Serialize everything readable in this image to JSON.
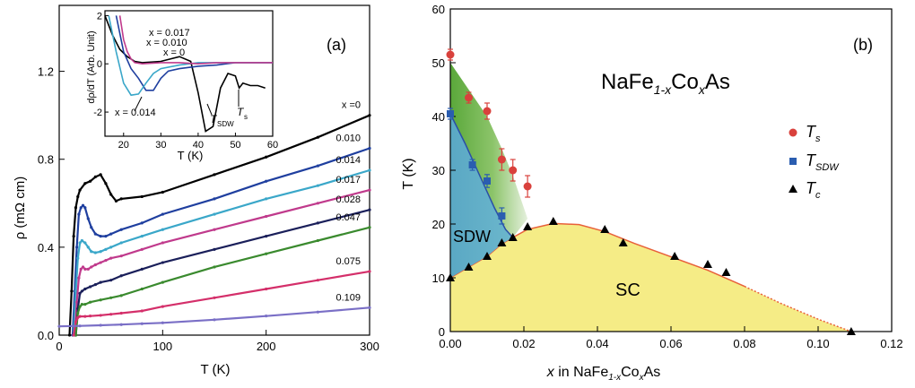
{
  "chart_data": [
    {
      "panel_label": "(a)",
      "type": "line",
      "xlabel": "T (K)",
      "ylabel": "ρ (mΩ cm)",
      "xlim": [
        0,
        300
      ],
      "ylim": [
        0,
        1.5
      ],
      "xticks": [
        "0",
        "100",
        "200",
        "300"
      ],
      "yticks": [
        "0.0",
        "0.4",
        "0.8",
        "1.2"
      ],
      "series": [
        {
          "name": "x =0",
          "color": "#000000",
          "x": [
            10,
            12,
            14,
            16,
            18,
            20,
            25,
            30,
            35,
            40,
            45,
            50,
            55,
            60,
            80,
            100,
            150,
            200,
            250,
            300
          ],
          "y": [
            0,
            0.2,
            0.45,
            0.58,
            0.63,
            0.66,
            0.69,
            0.7,
            0.72,
            0.73,
            0.69,
            0.64,
            0.61,
            0.62,
            0.63,
            0.65,
            0.73,
            0.81,
            0.9,
            1.0
          ]
        },
        {
          "name": "0.010",
          "color": "#1f3f9f",
          "x": [
            13,
            15,
            17,
            19,
            21,
            23,
            25,
            28,
            31,
            35,
            40,
            45,
            50,
            60,
            80,
            100,
            150,
            200,
            250,
            300
          ],
          "y": [
            0,
            0.2,
            0.4,
            0.55,
            0.58,
            0.59,
            0.58,
            0.53,
            0.49,
            0.46,
            0.45,
            0.45,
            0.46,
            0.48,
            0.51,
            0.55,
            0.62,
            0.7,
            0.77,
            0.85
          ]
        },
        {
          "name": "0.014",
          "color": "#3aa7c9",
          "x": [
            14,
            16,
            18,
            20,
            22,
            25,
            28,
            31,
            35,
            40,
            45,
            50,
            60,
            80,
            100,
            150,
            200,
            250,
            300
          ],
          "y": [
            0,
            0.2,
            0.35,
            0.42,
            0.43,
            0.42,
            0.4,
            0.38,
            0.375,
            0.38,
            0.39,
            0.4,
            0.42,
            0.45,
            0.48,
            0.55,
            0.62,
            0.68,
            0.75
          ]
        },
        {
          "name": "0.017",
          "color": "#c03a8c",
          "x": [
            15,
            17,
            19,
            21,
            23,
            25,
            28,
            31,
            35,
            40,
            45,
            50,
            60,
            80,
            100,
            150,
            200,
            250,
            300
          ],
          "y": [
            0,
            0.15,
            0.26,
            0.3,
            0.31,
            0.3,
            0.3,
            0.31,
            0.32,
            0.33,
            0.34,
            0.35,
            0.36,
            0.39,
            0.42,
            0.48,
            0.54,
            0.6,
            0.66
          ]
        },
        {
          "name": "0.028",
          "color": "#1a1f5a",
          "x": [
            16,
            18,
            20,
            22,
            25,
            30,
            35,
            40,
            50,
            60,
            80,
            100,
            150,
            200,
            250,
            300
          ],
          "y": [
            0,
            0.12,
            0.19,
            0.2,
            0.21,
            0.22,
            0.23,
            0.24,
            0.25,
            0.27,
            0.3,
            0.33,
            0.39,
            0.45,
            0.51,
            0.57
          ]
        },
        {
          "name": "0.047",
          "color": "#3a8a2e",
          "x": [
            16,
            18,
            20,
            22,
            25,
            30,
            40,
            50,
            60,
            80,
            100,
            150,
            200,
            250,
            300
          ],
          "y": [
            0,
            0.1,
            0.13,
            0.14,
            0.14,
            0.15,
            0.16,
            0.17,
            0.18,
            0.21,
            0.24,
            0.31,
            0.37,
            0.43,
            0.49
          ]
        },
        {
          "name": "0.075",
          "color": "#d42f6a",
          "x": [
            14,
            16,
            18,
            20,
            25,
            30,
            40,
            50,
            60,
            80,
            100,
            150,
            200,
            250,
            300
          ],
          "y": [
            0,
            0.06,
            0.08,
            0.085,
            0.085,
            0.087,
            0.09,
            0.095,
            0.1,
            0.11,
            0.13,
            0.17,
            0.21,
            0.25,
            0.29
          ]
        },
        {
          "name": "0.109",
          "color": "#7a6fc6",
          "x": [
            0,
            20,
            40,
            60,
            80,
            100,
            150,
            200,
            250,
            300
          ],
          "y": [
            0.04,
            0.042,
            0.045,
            0.048,
            0.052,
            0.056,
            0.07,
            0.087,
            0.105,
            0.125
          ]
        }
      ],
      "inset": {
        "ylabel": "dρ/dT (Arb. Unit)",
        "xlabel": "T (K)",
        "xlim": [
          15,
          60
        ],
        "ylim": [
          -3,
          2.2
        ],
        "xticks": [
          "20",
          "30",
          "40",
          "50",
          "60"
        ],
        "yticks": [
          "-2",
          "0",
          "2"
        ],
        "legend_labels": [
          "x = 0.017",
          "x = 0.010",
          "x = 0",
          "x = 0.014"
        ],
        "annotations": [
          "T",
          "SDW",
          "T",
          "s"
        ],
        "series": [
          {
            "color": "#000000",
            "x": [
              15,
              17,
              19,
              21,
              23,
              25,
              30,
              35,
              38,
              40,
              42,
              44,
              46,
              48,
              50,
              51,
              52,
              54,
              56,
              58
            ],
            "y": [
              2,
              1.2,
              0.6,
              0.3,
              0.1,
              0.05,
              0.1,
              0.3,
              0.1,
              -1.2,
              -2.8,
              -2.6,
              -1.0,
              -0.4,
              -0.5,
              -1.0,
              -0.8,
              -0.9,
              -0.9,
              -1.0
            ]
          },
          {
            "color": "#1f3f9f",
            "x": [
              18,
              20,
              22,
              24,
              26,
              28,
              30,
              32,
              35,
              40,
              45,
              50,
              55,
              60
            ],
            "y": [
              2,
              0.5,
              -0.2,
              -0.6,
              -1.1,
              -1.1,
              -0.6,
              -0.3,
              -0.2,
              -0.1,
              -0.05,
              0.05,
              0.05,
              0.05
            ]
          },
          {
            "color": "#3aa7c9",
            "x": [
              16,
              18,
              20,
              22,
              24,
              26,
              28,
              30,
              35,
              40,
              50,
              60
            ],
            "y": [
              2,
              0.5,
              -0.8,
              -1.3,
              -1.25,
              -0.8,
              -0.4,
              -0.2,
              -0.05,
              0.05,
              0.05,
              0.05
            ]
          },
          {
            "color": "#c03a8c",
            "x": [
              19,
              20,
              21,
              22,
              23,
              25,
              30,
              35,
              40,
              45,
              50,
              55,
              60
            ],
            "y": [
              2,
              1.0,
              0.5,
              0.2,
              0.05,
              0.0,
              0.05,
              0.05,
              0.0,
              0.05,
              0.05,
              0.05,
              0.05
            ]
          }
        ]
      }
    },
    {
      "panel_label": "(b)",
      "type": "scatter",
      "title": "NaFe",
      "title_parts": [
        "NaFe",
        "1-x",
        "Co",
        "x",
        "As"
      ],
      "xlabel_parts": [
        "x",
        " in NaFe",
        "1-x",
        "Co",
        "x",
        "As"
      ],
      "ylabel": "T (K)",
      "xlim": [
        0,
        0.12
      ],
      "ylim": [
        0,
        60
      ],
      "xticks": [
        "0.00",
        "0.02",
        "0.04",
        "0.06",
        "0.08",
        "0.10",
        "0.12"
      ],
      "yticks": [
        "0",
        "10",
        "20",
        "30",
        "40",
        "50",
        "60"
      ],
      "region_labels": [
        "SDW",
        "SC"
      ],
      "legend": [
        {
          "main": "T",
          "sub": "s",
          "marker": "circle",
          "color": "#d9413c"
        },
        {
          "main": "T",
          "sub": "SDW",
          "marker": "square",
          "color": "#2a5db0"
        },
        {
          "main": "T",
          "sub": "c",
          "marker": "triangle",
          "color": "#000000"
        }
      ],
      "Ts": {
        "x": [
          0.0,
          0.005,
          0.01,
          0.014,
          0.017,
          0.021
        ],
        "y": [
          51.5,
          43.5,
          41,
          32,
          30,
          27
        ],
        "err": [
          1,
          1,
          1.5,
          2,
          2,
          2
        ]
      },
      "Tsdw": {
        "x": [
          0.0,
          0.006,
          0.01,
          0.014
        ],
        "y": [
          40.5,
          31,
          28,
          21.5
        ],
        "err": [
          1,
          1,
          1.2,
          1.5
        ]
      },
      "Tc": {
        "x": [
          0.0,
          0.005,
          0.01,
          0.014,
          0.017,
          0.021,
          0.028,
          0.042,
          0.047,
          0.061,
          0.07,
          0.075,
          0.109
        ],
        "y": [
          10,
          12,
          14,
          16.5,
          17.5,
          19.5,
          20.5,
          19,
          16.5,
          14,
          12.5,
          11,
          0
        ]
      }
    }
  ]
}
